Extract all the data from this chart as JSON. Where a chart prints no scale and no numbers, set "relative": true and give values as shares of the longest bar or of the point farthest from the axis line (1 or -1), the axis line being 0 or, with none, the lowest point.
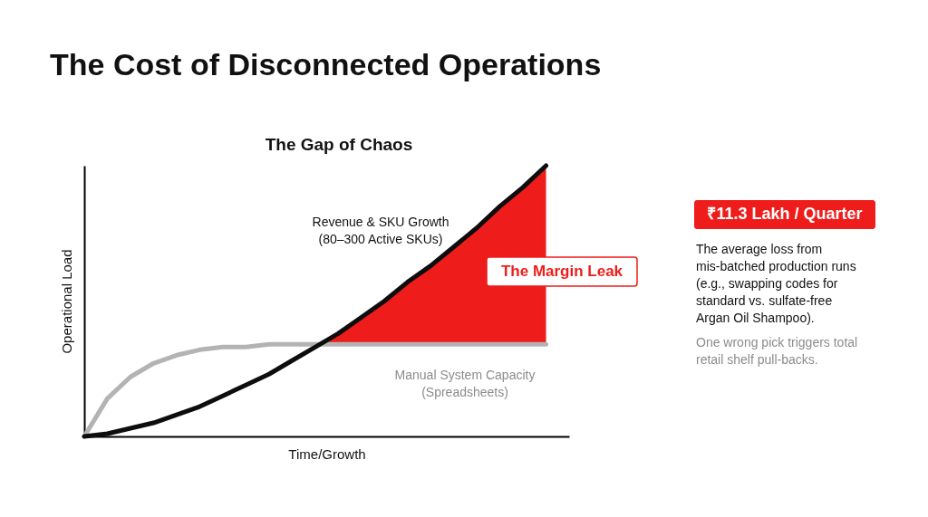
{
  "chart_data": {
    "type": "line",
    "title": "The Cost of Disconnected Operations",
    "subtitle": "The Gap of Chaos",
    "xlabel": "Time/Growth",
    "ylabel": "Operational Load",
    "categories": [
      null,
      null,
      null,
      null,
      null,
      null,
      null,
      null,
      null,
      null,
      null,
      null,
      null,
      null,
      null,
      null,
      null,
      null,
      null,
      null,
      null
    ],
    "relative": true,
    "tick_labels": false,
    "grid": false,
    "series": [
      {
        "type": "area",
        "color": "#ee1d1b",
        "values": [
          null,
          null,
          null,
          null,
          null,
          null,
          null,
          null,
          null,
          null,
          0.33,
          0.38,
          0.44,
          0.5,
          0.57,
          0.63,
          0.7,
          0.77,
          0.85,
          0.92,
          1.0
        ]
      },
      {
        "color": "#b3b3b3",
        "values": [
          0,
          0.14,
          0.22,
          0.27,
          0.3,
          0.32,
          0.33,
          0.33,
          0.34,
          0.34,
          0.34,
          0.34,
          0.34,
          0.34,
          0.34,
          0.34,
          0.34,
          0.34,
          0.34,
          0.34,
          0.34
        ]
      },
      {
        "color": "#0d0d0d",
        "values": [
          0,
          0.01,
          0.03,
          0.05,
          0.08,
          0.11,
          0.15,
          0.19,
          0.23,
          0.28,
          0.33,
          0.38,
          0.44,
          0.5,
          0.57,
          0.63,
          0.7,
          0.77,
          0.85,
          0.92,
          1.0
        ]
      }
    ],
    "annotations": [
      "Revenue & SKU Growth\n(80–300 Active SKUs)",
      "The Margin Leak",
      "Manual System Capacity\n(Spreadsheets)",
      "₹11.3 Lakh / Quarter",
      "The average loss from mis-batched production runs (e.g., swapping codes for standard vs. sulfate-free Argan Oil Shampoo).",
      "One wrong pick triggers total retail shelf pull-backs."
    ]
  }
}
